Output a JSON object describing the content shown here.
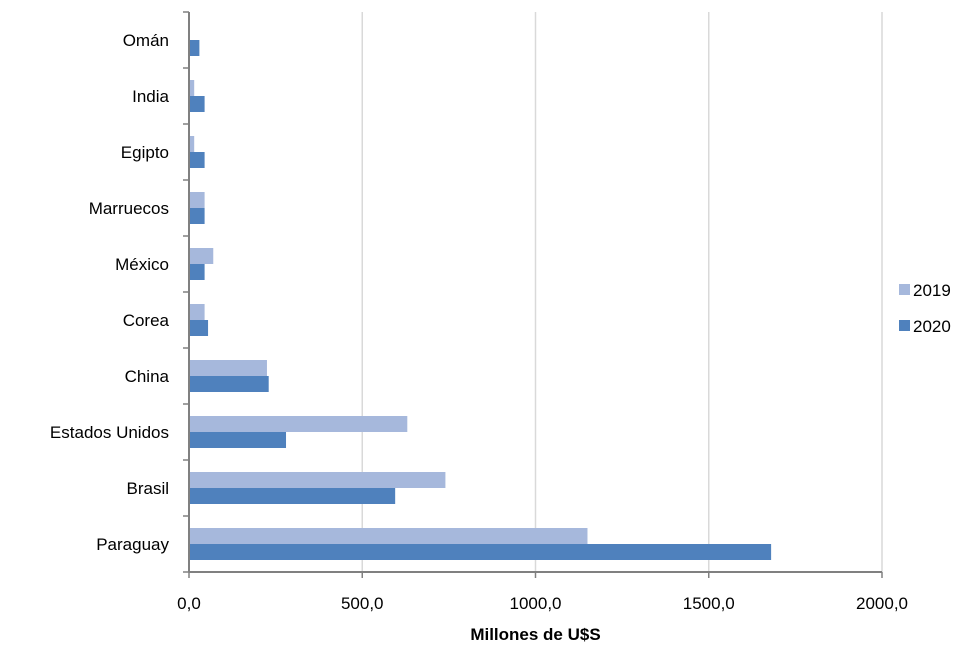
{
  "chart_data": {
    "type": "bar",
    "orientation": "horizontal",
    "categories": [
      "Omán",
      "India",
      "Egipto",
      "Marruecos",
      "México",
      "Corea",
      "China",
      "Estados Unidos",
      "Brasil",
      "Paraguay"
    ],
    "series": [
      {
        "name": "2019",
        "color": "#a6b8dc",
        "values": [
          0,
          15,
          15,
          45,
          70,
          45,
          225,
          630,
          740,
          1150
        ]
      },
      {
        "name": "2020",
        "color": "#4f81bd",
        "values": [
          30,
          45,
          45,
          45,
          45,
          55,
          230,
          280,
          595,
          1680
        ]
      }
    ],
    "xlabel": "Millones de U$S",
    "xlim": [
      0,
      2000
    ],
    "xticks": [
      "0,0",
      "500,0",
      "1000,0",
      "1500,0",
      "2000,0"
    ],
    "grid": "vertical",
    "legend": "right"
  }
}
